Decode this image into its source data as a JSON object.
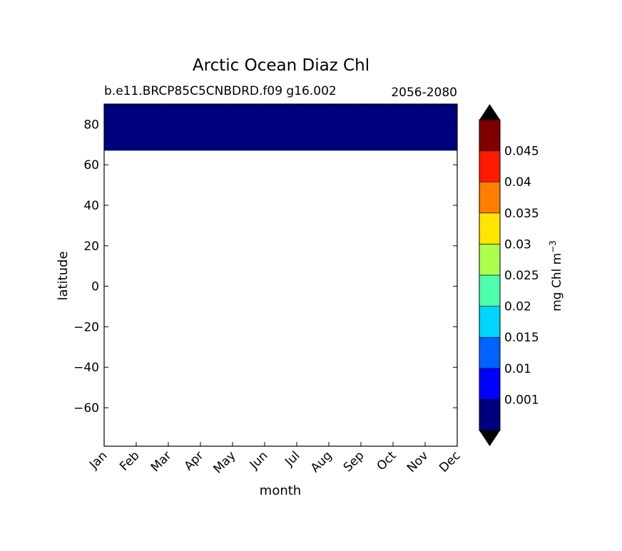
{
  "chart_data": {
    "type": "heatmap",
    "title": "Arctic Ocean Diaz Chl",
    "subtitle_left": "b.e11.BRCP85C5CNBDRD.f09 g16.002",
    "subtitle_right": "2056-2080",
    "xlabel": "month",
    "ylabel": "latitude",
    "x_categories": [
      "Jan",
      "Feb",
      "Mar",
      "Apr",
      "May",
      "Jun",
      "Jul",
      "Aug",
      "Sep",
      "Oct",
      "Nov",
      "Dec"
    ],
    "ylim": [
      -79,
      90
    ],
    "yticks": [
      80,
      60,
      40,
      20,
      0,
      -20,
      -40,
      -60
    ],
    "ytick_labels": [
      "80",
      "60",
      "40",
      "20",
      "0",
      "−20",
      "−40",
      "−60"
    ],
    "filled_region": {
      "lat_min": 67,
      "lat_max": 90,
      "color": "#00007f"
    },
    "colorbar": {
      "label": "mg Chl m",
      "label_sup": "−3",
      "colors": [
        "#00007f",
        "#0000ff",
        "#0063ff",
        "#00d5ff",
        "#4dffaa",
        "#aaff4d",
        "#ffe500",
        "#ff7e00",
        "#ff1a00",
        "#7f0000"
      ],
      "tick_labels": [
        "0.001",
        "0.01",
        "0.015",
        "0.02",
        "0.025",
        "0.03",
        "0.035",
        "0.04",
        "0.045"
      ],
      "extend_colors": [
        "#000000",
        "#000000"
      ]
    }
  }
}
